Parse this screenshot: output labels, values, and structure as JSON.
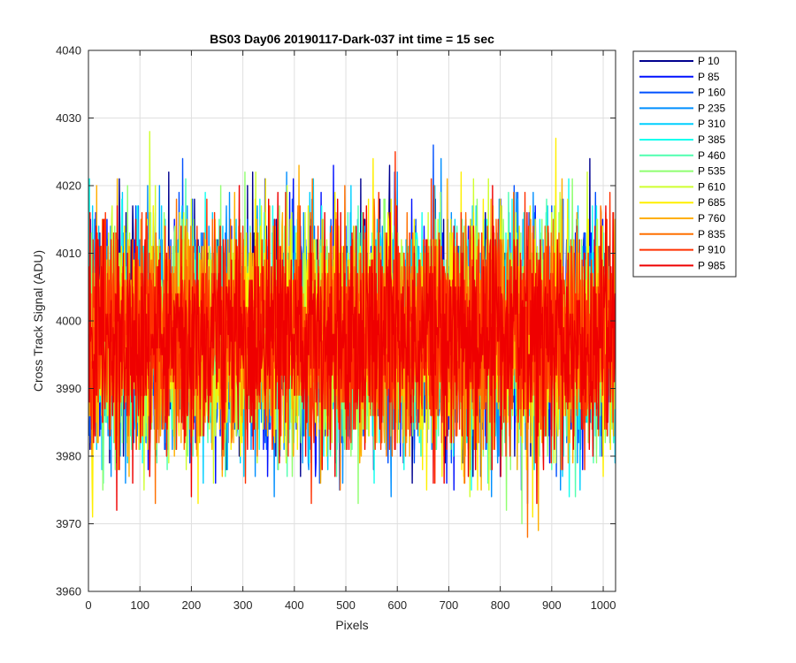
{
  "chart_data": {
    "type": "line",
    "title": "BS03 Day06 20190117-Dark-037 int time = 15 sec",
    "xlabel": "Pixels",
    "ylabel": "Cross Track Signal (ADU)",
    "xlim": [
      0,
      1024
    ],
    "ylim": [
      3960,
      4040
    ],
    "xticks": [
      0,
      100,
      200,
      300,
      400,
      500,
      600,
      700,
      800,
      900,
      1000
    ],
    "yticks": [
      3960,
      3970,
      3980,
      3990,
      4000,
      4010,
      4020,
      4030,
      4040
    ],
    "grid": true,
    "legend_position": "outside-top-right",
    "n_points": 1024,
    "signal_mean": 3998,
    "signal_std": 8,
    "series": [
      {
        "name": "P 10",
        "color": "#00008f"
      },
      {
        "name": "P 85",
        "color": "#0010ff"
      },
      {
        "name": "P 160",
        "color": "#0050ff"
      },
      {
        "name": "P 235",
        "color": "#008fff"
      },
      {
        "name": "P 310",
        "color": "#00cfff"
      },
      {
        "name": "P 385",
        "color": "#10ffef"
      },
      {
        "name": "P 460",
        "color": "#50ffaf"
      },
      {
        "name": "P 535",
        "color": "#8fff70"
      },
      {
        "name": "P 610",
        "color": "#cfff30"
      },
      {
        "name": "P 685",
        "color": "#ffef00"
      },
      {
        "name": "P 760",
        "color": "#ffaf00"
      },
      {
        "name": "P 835",
        "color": "#ff7000"
      },
      {
        "name": "P 910",
        "color": "#ff3000"
      },
      {
        "name": "P 985",
        "color": "#ef0000"
      }
    ]
  }
}
